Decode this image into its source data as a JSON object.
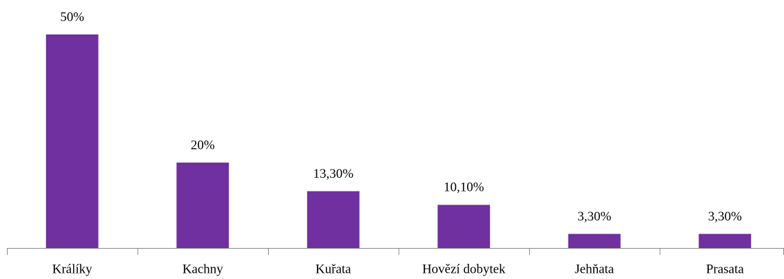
{
  "chart_data": {
    "type": "bar",
    "categories": [
      "Králíky",
      "Kachny",
      "Kuřata",
      "Hovězí dobytek",
      "Jehňata",
      "Prasata"
    ],
    "values": [
      50,
      20,
      13.3,
      10.1,
      3.3,
      3.3
    ],
    "value_labels": [
      "50%",
      "20%",
      "13,30%",
      "10,10%",
      "3,30%",
      "3,30%"
    ],
    "color": "#7030a0"
  }
}
